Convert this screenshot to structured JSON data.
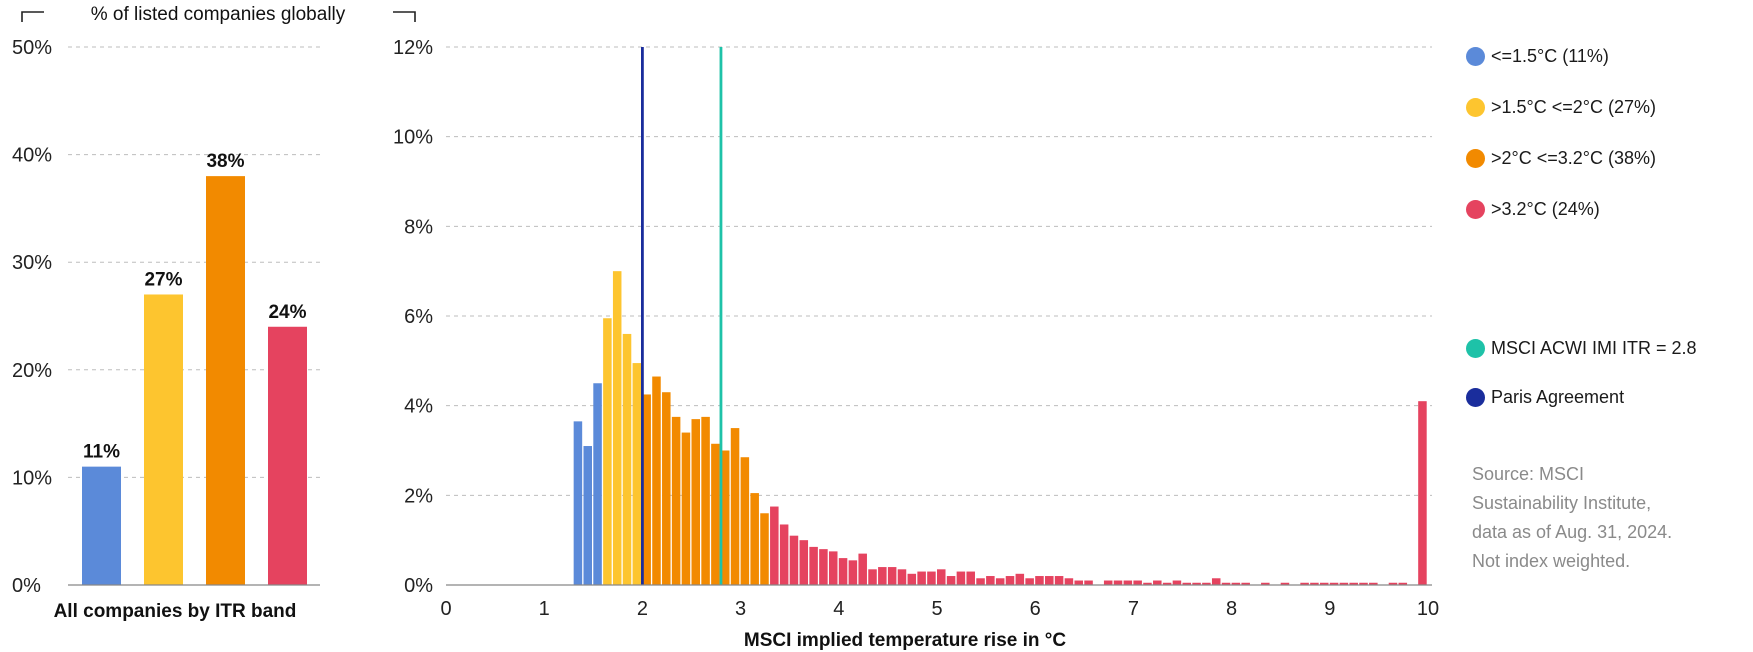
{
  "chart_data": [
    {
      "type": "bar",
      "title": "",
      "ylabel": "% of listed companies globally",
      "xlabel": "All companies by ITR band",
      "ylim": [
        0,
        50
      ],
      "yticks": [
        "0%",
        "10%",
        "20%",
        "30%",
        "40%",
        "50%"
      ],
      "grid": true,
      "categories": [
        "<=1.5°C",
        ">1.5°C <=2°C",
        ">2°C <=3.2°C",
        ">3.2°C"
      ],
      "values": [
        11,
        27,
        38,
        24
      ],
      "value_labels": [
        "11%",
        "27%",
        "38%",
        "24%"
      ],
      "colors": [
        "#5b8ad9",
        "#fdc52f",
        "#f28a00",
        "#e5435f"
      ]
    },
    {
      "type": "bar",
      "title": "",
      "xlabel": "MSCI implied temperature rise in °C",
      "ylabel": "",
      "xlim": [
        0,
        10
      ],
      "ylim": [
        0,
        12
      ],
      "xticks": [
        "0",
        "1",
        "2",
        "3",
        "4",
        "5",
        "6",
        "7",
        "8",
        "9",
        "10"
      ],
      "yticks": [
        "0%",
        "2%",
        "4%",
        "6%",
        "8%",
        "10%",
        "12%"
      ],
      "grid": true,
      "bin_width": 0.1,
      "bins": [
        [
          1.3,
          3.65
        ],
        [
          1.4,
          3.1
        ],
        [
          1.5,
          4.5
        ],
        [
          1.6,
          5.95
        ],
        [
          1.7,
          7.0
        ],
        [
          1.8,
          5.6
        ],
        [
          1.9,
          4.95
        ],
        [
          2.0,
          4.25
        ],
        [
          2.1,
          4.65
        ],
        [
          2.2,
          4.3
        ],
        [
          2.3,
          3.75
        ],
        [
          2.4,
          3.4
        ],
        [
          2.5,
          3.7
        ],
        [
          2.6,
          3.75
        ],
        [
          2.7,
          3.15
        ],
        [
          2.8,
          3.0
        ],
        [
          2.9,
          3.5
        ],
        [
          3.0,
          2.85
        ],
        [
          3.1,
          2.05
        ],
        [
          3.2,
          1.6
        ],
        [
          3.3,
          1.75
        ],
        [
          3.4,
          1.35
        ],
        [
          3.5,
          1.1
        ],
        [
          3.6,
          1.0
        ],
        [
          3.7,
          0.85
        ],
        [
          3.8,
          0.8
        ],
        [
          3.9,
          0.75
        ],
        [
          4.0,
          0.6
        ],
        [
          4.1,
          0.55
        ],
        [
          4.2,
          0.7
        ],
        [
          4.3,
          0.35
        ],
        [
          4.4,
          0.4
        ],
        [
          4.5,
          0.4
        ],
        [
          4.6,
          0.35
        ],
        [
          4.7,
          0.25
        ],
        [
          4.8,
          0.3
        ],
        [
          4.9,
          0.3
        ],
        [
          5.0,
          0.35
        ],
        [
          5.1,
          0.2
        ],
        [
          5.2,
          0.3
        ],
        [
          5.3,
          0.3
        ],
        [
          5.4,
          0.15
        ],
        [
          5.5,
          0.2
        ],
        [
          5.6,
          0.15
        ],
        [
          5.7,
          0.2
        ],
        [
          5.8,
          0.25
        ],
        [
          5.9,
          0.15
        ],
        [
          6.0,
          0.2
        ],
        [
          6.1,
          0.2
        ],
        [
          6.2,
          0.2
        ],
        [
          6.3,
          0.15
        ],
        [
          6.4,
          0.1
        ],
        [
          6.5,
          0.1
        ],
        [
          6.7,
          0.1
        ],
        [
          6.8,
          0.1
        ],
        [
          6.9,
          0.1
        ],
        [
          7.0,
          0.1
        ],
        [
          7.1,
          0.05
        ],
        [
          7.2,
          0.1
        ],
        [
          7.3,
          0.05
        ],
        [
          7.4,
          0.1
        ],
        [
          7.5,
          0.05
        ],
        [
          7.6,
          0.05
        ],
        [
          7.7,
          0.05
        ],
        [
          7.8,
          0.15
        ],
        [
          7.9,
          0.05
        ],
        [
          8.0,
          0.05
        ],
        [
          8.1,
          0.05
        ],
        [
          8.3,
          0.05
        ],
        [
          8.5,
          0.05
        ],
        [
          8.7,
          0.05
        ],
        [
          8.8,
          0.05
        ],
        [
          8.9,
          0.05
        ],
        [
          9.0,
          0.05
        ],
        [
          9.1,
          0.05
        ],
        [
          9.2,
          0.05
        ],
        [
          9.3,
          0.05
        ],
        [
          9.4,
          0.05
        ],
        [
          9.6,
          0.05
        ],
        [
          9.7,
          0.05
        ],
        [
          9.9,
          4.1
        ]
      ],
      "reference_lines": [
        {
          "name": "MSCI ACWI IMI ITR",
          "x": 2.8,
          "color": "#1ec2a8"
        },
        {
          "name": "Paris Agreement",
          "x": 2.0,
          "color": "#1a2d9c"
        }
      ]
    }
  ],
  "legend": [
    {
      "label": "<=1.5°C (11%)",
      "color": "#5b8ad9"
    },
    {
      "label": ">1.5°C <=2°C (27%)",
      "color": "#fdc52f"
    },
    {
      "label": ">2°C <=3.2°C (38%)",
      "color": "#f28a00"
    },
    {
      "label": ">3.2°C (24%)",
      "color": "#e5435f"
    },
    {
      "label": "MSCI ACWI IMI ITR = 2.8",
      "color": "#1ec2a8"
    },
    {
      "label": "Paris Agreement",
      "color": "#1a2d9c"
    }
  ],
  "source_lines": [
    "Source: MSCI",
    "Sustainability Institute,",
    "data as of Aug. 31, 2024.",
    "Not index weighted."
  ]
}
